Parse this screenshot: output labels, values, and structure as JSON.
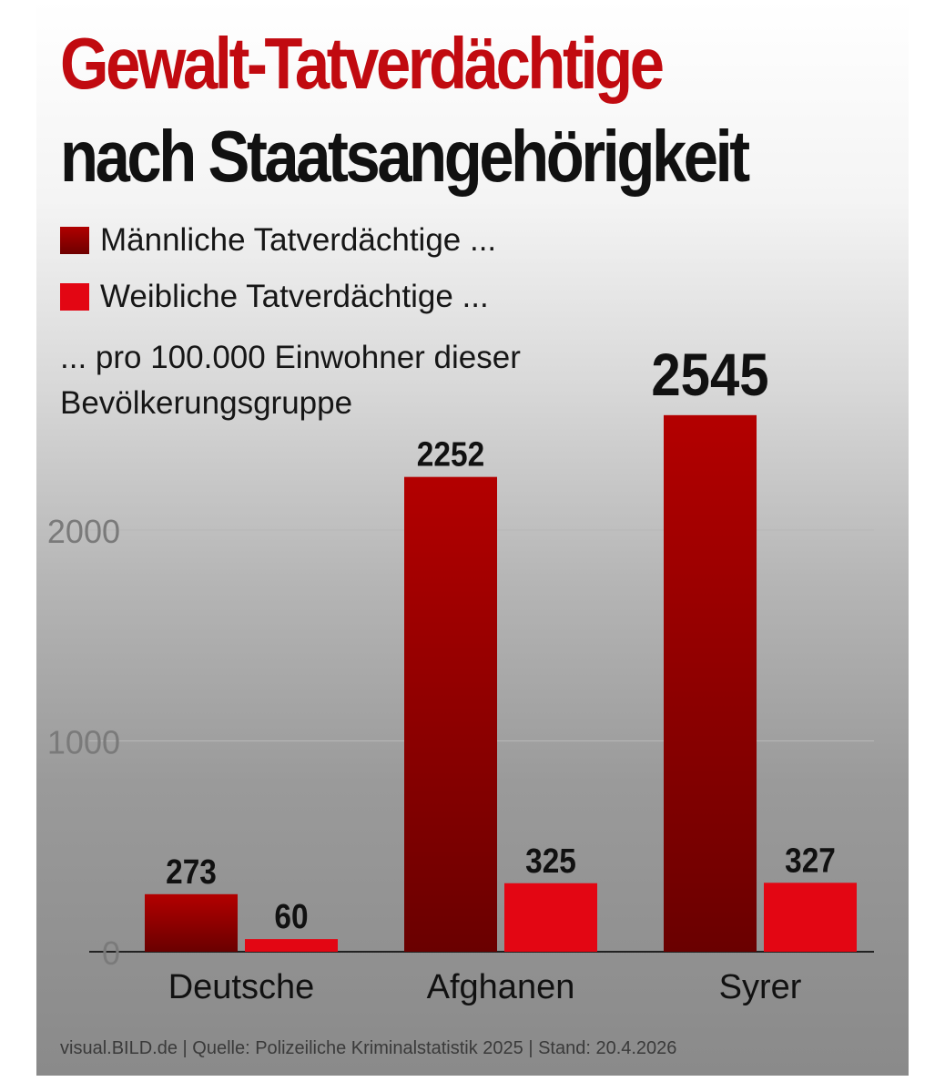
{
  "title_line1": "Gewalt-Tatverdächtige",
  "title_line2": "nach Staatsangehörigkeit",
  "legend": {
    "male_label": "Männliche Tatverdächtige ...",
    "female_label": "Weibliche Tatverdächtige ...",
    "note": "... pro 100.000 Einwohner dieser Bevölkerungsgruppe"
  },
  "colors": {
    "male": "#b00000",
    "male_dark": "#6e0000",
    "female": "#e30613",
    "title_red": "#c10a10"
  },
  "source": "visual.BILD.de | Quelle: Polizeiliche Kriminalstatistik 2025 | Stand: 20.4.2026",
  "chart_data": {
    "type": "bar",
    "categories": [
      "Deutsche",
      "Afghanen",
      "Syrer"
    ],
    "series": [
      {
        "name": "Männliche Tatverdächtige ...",
        "values": [
          273,
          2252,
          2545
        ]
      },
      {
        "name": "Weibliche Tatverdächtige ...",
        "values": [
          60,
          325,
          327
        ]
      }
    ],
    "data_labels": [
      [
        "273",
        "2252",
        "2545"
      ],
      [
        "60",
        "325",
        "327"
      ]
    ],
    "yticks": [
      "0",
      "1000",
      "2000"
    ],
    "ylim": [
      0,
      2600
    ],
    "grid": true,
    "legend_position": "top-left"
  }
}
